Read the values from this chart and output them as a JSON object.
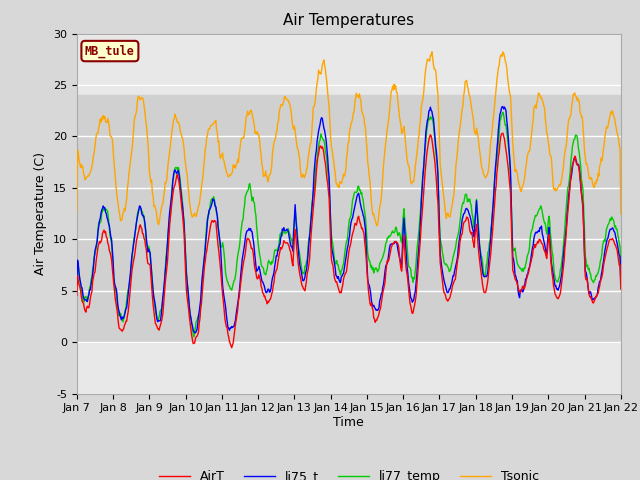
{
  "title": "Air Temperatures",
  "xlabel": "Time",
  "ylabel": "Air Temperature (C)",
  "ylim": [
    -5,
    30
  ],
  "yticks": [
    -5,
    0,
    5,
    10,
    15,
    20,
    25,
    30
  ],
  "x_tick_labels": [
    "Jan 7",
    "Jan 8",
    "Jan 9",
    "Jan 10",
    "Jan 11",
    "Jan 12",
    "Jan 13",
    "Jan 14",
    "Jan 15",
    "Jan 16",
    "Jan 17",
    "Jan 18",
    "Jan 19",
    "Jan 20",
    "Jan 21",
    "Jan 22"
  ],
  "station_label": "MB_tule",
  "station_label_color": "#8B0000",
  "station_box_facecolor": "#FFFFCC",
  "station_box_edgecolor": "#8B0000",
  "legend_entries": [
    "AirT",
    "li75_t",
    "li77_temp",
    "Tsonic"
  ],
  "legend_colors": [
    "#FF0000",
    "#0000FF",
    "#00CC00",
    "#FFA500"
  ],
  "bg_color": "#D8D8D8",
  "plot_bg_color": "#E8E8E8",
  "grid_color": "#FFFFFF",
  "title_fontsize": 11,
  "axis_label_fontsize": 9,
  "tick_fontsize": 8,
  "band_low": 0,
  "band_high": 24,
  "band_color": "#D0D0D0",
  "line_width": 1.0
}
